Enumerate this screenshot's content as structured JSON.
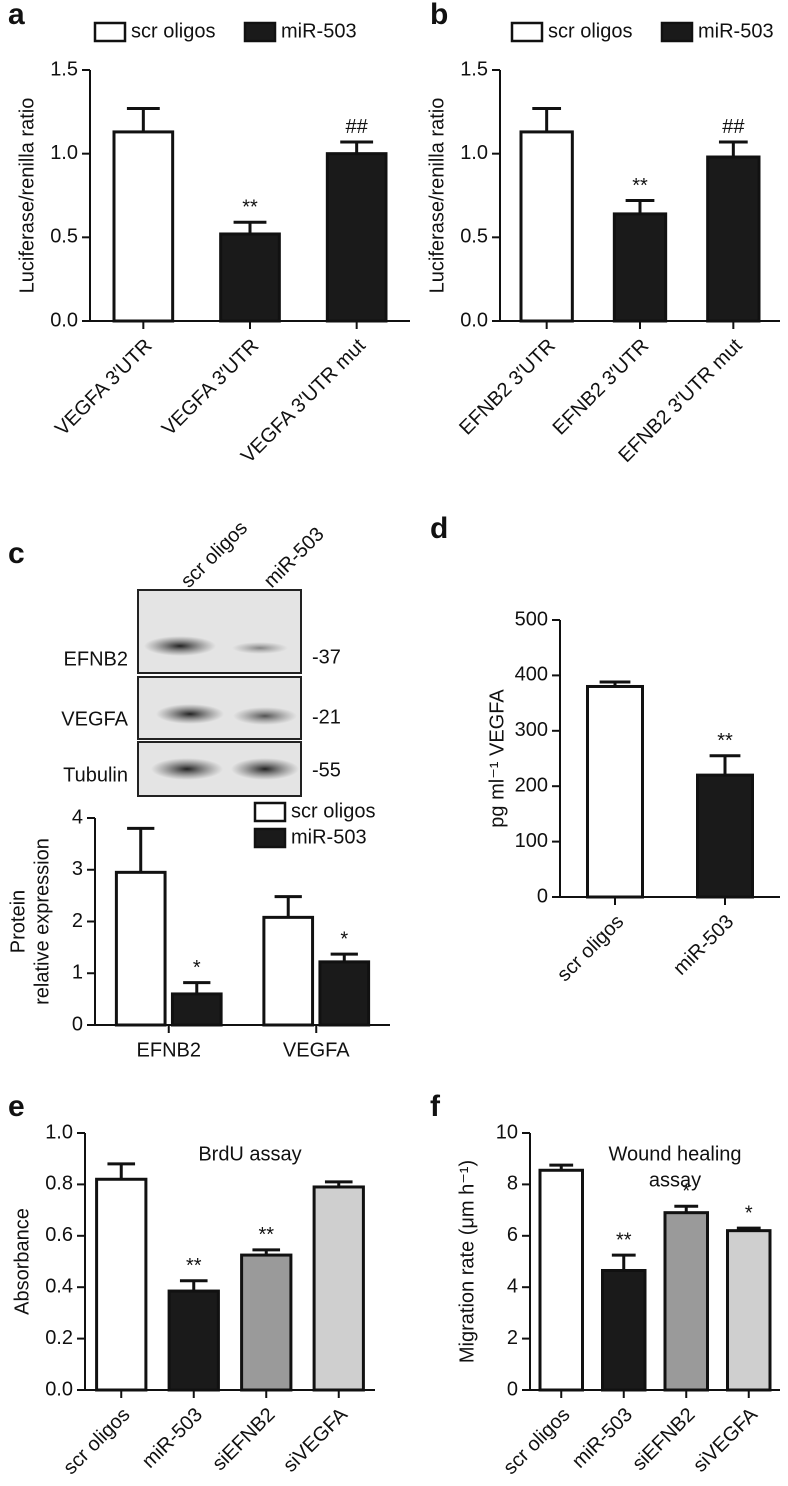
{
  "chart_data": [
    {
      "type": "bar",
      "panel": "a",
      "legend": "top",
      "y_label": "Luciferase/renilla ratio",
      "categories": [
        "VEGFA 3′UTR",
        "VEGFA 3′UTR",
        "VEGFA 3′UTR mut"
      ],
      "series": [
        {
          "name": "scr oligos",
          "color": "#ffffff",
          "values": [
            1.13,
            null,
            null
          ],
          "errors": [
            0.14,
            null,
            null
          ]
        },
        {
          "name": "miR-503",
          "color": "#1a1a1a",
          "values": [
            null,
            0.52,
            1.0
          ],
          "errors": [
            null,
            0.07,
            0.07
          ],
          "annotations": [
            null,
            "**",
            "##"
          ]
        }
      ],
      "ylim": [
        0,
        1.5
      ],
      "yticks": [
        {
          "value": 0,
          "label": "0.0"
        },
        0.5,
        {
          "value": 1,
          "label": "1.0"
        },
        1.5
      ]
    },
    {
      "type": "bar",
      "panel": "b",
      "legend": "top",
      "y_label": "Luciferase/renilla ratio",
      "categories": [
        "EFNB2 3′UTR",
        "EFNB2 3′UTR",
        "EFNB2 3′UTR mut"
      ],
      "series": [
        {
          "name": "scr oligos",
          "color": "#ffffff",
          "values": [
            1.13,
            null,
            null
          ],
          "errors": [
            0.14,
            null,
            null
          ]
        },
        {
          "name": "miR-503",
          "color": "#1a1a1a",
          "values": [
            null,
            0.64,
            0.98
          ],
          "errors": [
            null,
            0.08,
            0.09
          ],
          "annotations": [
            null,
            "**",
            "##"
          ]
        }
      ],
      "ylim": [
        0,
        1.5
      ],
      "yticks": [
        {
          "value": 0,
          "label": "0.0"
        },
        0.5,
        {
          "value": 1,
          "label": "1.0"
        },
        1.5
      ]
    },
    {
      "type": "bar",
      "panel": "c",
      "legend": "upper right",
      "grouped": true,
      "y_label": [
        "Protein",
        "relative expression"
      ],
      "categories": [
        "EFNB2",
        "VEGFA"
      ],
      "series": [
        {
          "name": "scr oligos",
          "color": "#ffffff",
          "values": [
            2.95,
            2.08
          ],
          "errors": [
            0.85,
            0.4
          ]
        },
        {
          "name": "miR-503",
          "color": "#1a1a1a",
          "values": [
            0.6,
            1.22
          ],
          "errors": [
            0.22,
            0.15
          ],
          "annotations": [
            "*",
            "*"
          ]
        }
      ],
      "ylim": [
        0,
        4
      ],
      "yticks": [
        0,
        1,
        2,
        3,
        4
      ]
    },
    {
      "type": "bar",
      "panel": "d",
      "y_label": "pg ml⁻¹ VEGFA",
      "categories": [
        "scr oligos",
        "miR-503"
      ],
      "series": [
        {
          "colors": [
            "#ffffff",
            "#1a1a1a"
          ],
          "values": [
            380,
            220
          ],
          "errors": [
            8,
            35
          ],
          "annotations": [
            null,
            "**"
          ]
        }
      ],
      "ylim": [
        0,
        500
      ],
      "yticks": [
        0,
        100,
        200,
        300,
        400,
        500
      ]
    },
    {
      "type": "bar",
      "panel": "e",
      "title": [
        "BrdU assay"
      ],
      "y_label": "Absorbance",
      "categories": [
        "scr oligos",
        "miR-503",
        "siEFNB2",
        "siVEGFA"
      ],
      "series": [
        {
          "colors": [
            "#ffffff",
            "#1a1a1a",
            "#9a9a9a",
            "#cfcfcf"
          ],
          "values": [
            0.82,
            0.385,
            0.525,
            0.79
          ],
          "errors": [
            0.06,
            0.04,
            0.02,
            0.02
          ],
          "annotations": [
            null,
            "**",
            "**",
            null
          ]
        }
      ],
      "ylim": [
        0,
        1
      ],
      "yticks": [
        {
          "value": 0,
          "label": "0.0"
        },
        0.2,
        0.4,
        0.6,
        0.8,
        {
          "value": 1,
          "label": "1.0"
        }
      ]
    },
    {
      "type": "bar",
      "panel": "f",
      "title": [
        "Wound healing",
        "assay"
      ],
      "y_label": "Migration rate (μm h⁻¹)",
      "categories": [
        "scr oligos",
        "miR-503",
        "siEFNB2",
        "siVEGFA"
      ],
      "series": [
        {
          "colors": [
            "#ffffff",
            "#1a1a1a",
            "#9a9a9a",
            "#cfcfcf"
          ],
          "values": [
            8.55,
            4.65,
            6.9,
            6.2
          ],
          "errors": [
            0.2,
            0.6,
            0.25,
            0.1
          ],
          "annotations": [
            null,
            "**",
            "*",
            "*"
          ]
        }
      ],
      "ylim": [
        0,
        10
      ],
      "yticks": [
        0,
        2,
        4,
        6,
        8,
        10
      ]
    }
  ],
  "blot": {
    "columns": [
      "scr oligos",
      "miR-503"
    ],
    "rows": [
      {
        "label": "EFNB2",
        "size": "-37"
      },
      {
        "label": "VEGFA",
        "size": "-21"
      },
      {
        "label": "Tubulin",
        "size": "-55"
      }
    ]
  }
}
